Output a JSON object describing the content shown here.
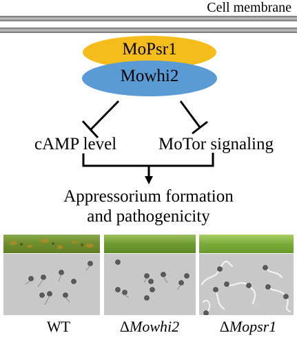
{
  "membrane": {
    "label": "Cell membrane"
  },
  "complex": {
    "top_protein": "MoPsr1",
    "bottom_protein": "Mowhi2"
  },
  "targets": {
    "left": "cAMP level",
    "right": "MoTor signaling"
  },
  "outcome": {
    "line1": "Appressorium formation",
    "line2": "and pathogenicity"
  },
  "genotypes": {
    "wt": "WT",
    "mowhi2_prefix": "Δ",
    "mowhi2_name": "Mowhi2",
    "mopsr1_prefix": "Δ",
    "mopsr1_name": "Mopsr1"
  },
  "colors": {
    "membrane": "#9a9a9a",
    "mopsr1": "#f5bd1c",
    "mowhi2": "#5b9bd5",
    "leaf_wt": "#6f8f2e",
    "leaf_mutant": "#7fae3c",
    "micro_background": "#c8c8c8"
  }
}
